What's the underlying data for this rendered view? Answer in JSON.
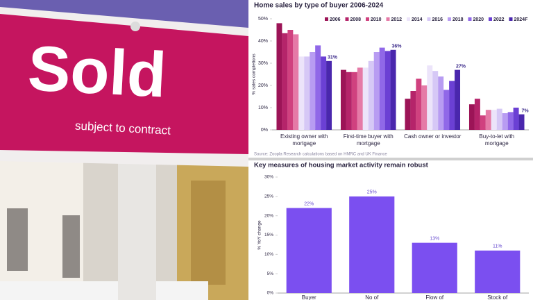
{
  "photo": {
    "sign_text": "Sold",
    "sign_subtext": "subject to contract"
  },
  "chart_data": [
    {
      "type": "bar",
      "title": "Home sales by type of buyer 2006-2024",
      "ylabel": "% sales completions",
      "source": "Source: Zoopla Research calculations based on HMRC and UK Finance",
      "categories": [
        "Existing owner with mortgage",
        "First-time buyer with mortgage",
        "Cash owner or investor",
        "Buy-to-let with mortgage"
      ],
      "series": [
        {
          "name": "2006",
          "color": "#9c1457",
          "values": [
            48,
            27,
            14,
            11.5
          ]
        },
        {
          "name": "2008",
          "color": "#b5246a",
          "values": [
            43.5,
            26,
            17.5,
            14
          ]
        },
        {
          "name": "2010",
          "color": "#d0417f",
          "values": [
            45,
            26,
            23,
            6.5
          ]
        },
        {
          "name": "2012",
          "color": "#e57aa7",
          "values": [
            43,
            28,
            20,
            9
          ]
        },
        {
          "name": "2014",
          "color": "#ece4fa",
          "values": [
            33,
            28,
            29,
            9
          ]
        },
        {
          "name": "2016",
          "color": "#d6c8f6",
          "values": [
            33,
            31,
            26.5,
            9.5
          ]
        },
        {
          "name": "2018",
          "color": "#b89cf2",
          "values": [
            35,
            35,
            24,
            7.5
          ]
        },
        {
          "name": "2020",
          "color": "#9068e8",
          "values": [
            38,
            37,
            18,
            8
          ]
        },
        {
          "name": "2022",
          "color": "#6b40d4",
          "values": [
            33,
            35.5,
            22,
            10
          ]
        },
        {
          "name": "2024F",
          "color": "#4a27ad",
          "values": [
            31,
            36,
            27,
            7
          ],
          "value_labels": [
            "31%",
            "36%",
            "27%",
            "7%"
          ]
        }
      ],
      "ylim": [
        0,
        50
      ],
      "yticks": [
        {
          "value": 0,
          "label": "0%"
        },
        {
          "value": 10,
          "label": "10%"
        },
        {
          "value": 20,
          "label": "20%"
        },
        {
          "value": 30,
          "label": "30%"
        },
        {
          "value": 40,
          "label": "40%"
        },
        {
          "value": 50,
          "label": "50%"
        }
      ],
      "grid": false
    },
    {
      "type": "bar",
      "title": "Key measures of housing market activity remain robust",
      "ylabel": "% YoY change",
      "categories": [
        "Buyer",
        "No of",
        "Flow of",
        "Stock of"
      ],
      "values": [
        22,
        25,
        13,
        11
      ],
      "value_labels": [
        "22%",
        "25%",
        "13%",
        "11%"
      ],
      "color": "#7b4ff0",
      "ylim": [
        0,
        30
      ],
      "yticks": [
        {
          "value": 0,
          "label": "0%"
        },
        {
          "value": 5,
          "label": "5%"
        },
        {
          "value": 10,
          "label": "10%"
        },
        {
          "value": 15,
          "label": "15%"
        },
        {
          "value": 20,
          "label": "20%"
        },
        {
          "value": 25,
          "label": "25%"
        },
        {
          "value": 30,
          "label": "30%"
        }
      ],
      "grid": false
    }
  ]
}
